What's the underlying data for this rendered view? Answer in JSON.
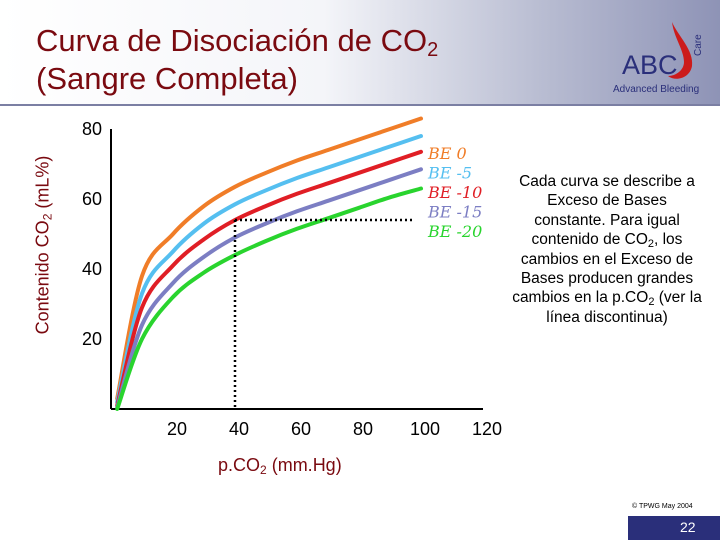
{
  "slide": {
    "title_line1": "Curva de Disociación de CO",
    "title_line1_sub": "2",
    "title_line2": "(Sangre Completa)",
    "copyright": "© TPWG May 2004",
    "page_number": "22"
  },
  "logo": {
    "text": "ABC",
    "vertical_text": "Care",
    "subtitle": "Advanced Bleeding",
    "text_color": "#2a2f7a",
    "drop_color": "#cc1b1b"
  },
  "note": {
    "part1": "Cada curva se describe a Exceso de Bases constante. Para igual contenido de CO",
    "sub1": "2",
    "part2": ", los cambios en el Exceso de Bases producen grandes cambios en la p.CO",
    "sub2": "2",
    "part3": " (ver la línea discontinua)"
  },
  "chart_data": {
    "type": "line",
    "ylabel": "Contenido CO",
    "ylabel_sub": "2",
    "ylabel_unit": " (mL%)",
    "xlabel": "p.CO",
    "xlabel_sub": "2",
    "xlabel_unit": " (mm.Hg)",
    "x_ticks": [
      20,
      40,
      60,
      80,
      100,
      120
    ],
    "y_ticks": [
      20,
      40,
      60,
      80
    ],
    "xlim": [
      0,
      120
    ],
    "ylim": [
      0,
      80
    ],
    "grid": false,
    "legend_position": "top-right",
    "series": [
      {
        "name": "BE 0",
        "color": "#f07d28",
        "x": [
          2,
          10,
          20,
          30,
          40,
          50,
          60,
          70,
          80,
          90,
          100
        ],
        "y": [
          3,
          38,
          50,
          58,
          63.5,
          67.5,
          71,
          74,
          77,
          80,
          83
        ]
      },
      {
        "name": "BE -5",
        "color": "#55bff0",
        "x": [
          2,
          10,
          20,
          30,
          40,
          50,
          60,
          70,
          80,
          90,
          100
        ],
        "y": [
          2,
          33,
          45,
          53,
          58.5,
          62.5,
          66,
          69,
          72,
          75,
          78
        ]
      },
      {
        "name": "BE -10",
        "color": "#e01e25",
        "x": [
          2,
          10,
          20,
          30,
          40,
          50,
          60,
          70,
          80,
          90,
          100
        ],
        "y": [
          1,
          29,
          41,
          48.5,
          54,
          58,
          61.5,
          64.5,
          67.5,
          70.5,
          73.5
        ]
      },
      {
        "name": "BE -15",
        "color": "#7c7ec3",
        "x": [
          2,
          10,
          20,
          30,
          40,
          50,
          60,
          70,
          80,
          90,
          100
        ],
        "y": [
          0.5,
          24,
          36,
          43.5,
          49,
          53,
          56.5,
          59.5,
          62.5,
          65.5,
          68.5
        ]
      },
      {
        "name": "BE -20",
        "color": "#29d42e",
        "x": [
          2,
          10,
          20,
          30,
          40,
          50,
          60,
          70,
          80,
          90,
          100
        ],
        "y": [
          0,
          20,
          32,
          39,
          44,
          48,
          51.5,
          54.5,
          57.5,
          60.5,
          63
        ]
      }
    ],
    "reference_line": {
      "x_from": 40,
      "x_to": 98,
      "y": 54,
      "style": "dotted",
      "color": "#000000"
    }
  }
}
